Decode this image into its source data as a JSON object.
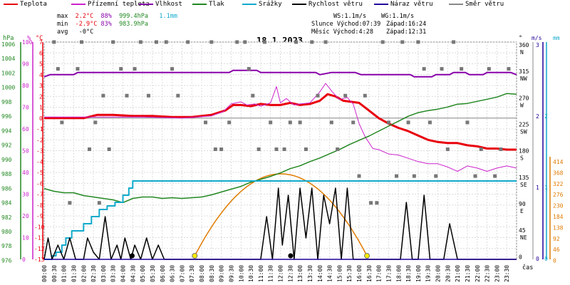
{
  "legend": [
    {
      "label": "Teplota",
      "color": "#e8000b"
    },
    {
      "label": "Přízemní teplota",
      "color": "#cc22cc"
    },
    {
      "label": "Vlhkost",
      "color": "#8800aa"
    },
    {
      "label": "Tlak",
      "color": "#228822"
    },
    {
      "label": "Srážky",
      "color": "#11aacc"
    },
    {
      "label": "Rychlost větru",
      "color": "#000000"
    },
    {
      "label": "Náraz větru",
      "color": "#220099"
    },
    {
      "label": "Směr větru",
      "color": "#888888"
    }
  ],
  "stats": {
    "max_label": "max",
    "min_label": "min",
    "avg_label": "avg",
    "max_temp": "2.2°C",
    "max_hum": "88%",
    "max_press": "999.4hPa",
    "max_rain": "1.1mm",
    "min_temp": "-2.9°C",
    "min_hum": "83%",
    "min_press": "983.9hPa",
    "avg_temp": "-0°C"
  },
  "sun": {
    "ws": "WS:1.1m/s",
    "wg": "WG:1.1m/s",
    "sun_line": "Slunce Východ:07:39",
    "sun_set": "Západ:16:24",
    "moon_line": "Měsíc Východ:4:28",
    "moon_set": "Západ:12:31"
  },
  "title": "18.1.2023",
  "axes": {
    "hpa_unit": "hPa",
    "pct_unit": "%",
    "c_unit": "°C",
    "deg_unit": "°",
    "ms_unit": "m/s",
    "mm_unit": "mm",
    "time_unit": "čas",
    "hpa_ticks": [
      "1006",
      "1004",
      "1002",
      "1000",
      "998",
      "996",
      "994",
      "992",
      "990",
      "988",
      "986",
      "984",
      "982",
      "980",
      "978",
      "976"
    ],
    "pct_ticks": [
      "100",
      "90",
      "80",
      "70",
      "60",
      "50",
      "40",
      "30",
      "20",
      "10",
      "0"
    ],
    "c_ticks": [
      "7",
      "6",
      "5",
      "4",
      "3",
      "2",
      "1",
      "0",
      "-1",
      "-2",
      "-3",
      "-4",
      "-5",
      "-6",
      "-7",
      "-8",
      "-9",
      "-10",
      "-11",
      "-12",
      "-13"
    ],
    "dir_ticks": [
      [
        "360",
        "N"
      ],
      [
        "315",
        "NW"
      ],
      [
        "270",
        "W"
      ],
      [
        "225",
        "SW"
      ],
      [
        "180",
        "S"
      ],
      [
        "135",
        "SE"
      ],
      [
        "90",
        "E"
      ],
      [
        "45",
        "NE"
      ],
      [
        "0",
        ""
      ]
    ],
    "ms_ticks": [
      "3",
      "2",
      "1",
      "0"
    ],
    "mm_ticks": [
      "",
      "2",
      "1",
      "0"
    ],
    "gust_ticks": [
      "414",
      "368",
      "322",
      "276",
      "230",
      "184",
      "138",
      "92",
      "46",
      "0"
    ],
    "time_ticks": [
      "00:00",
      "00:30",
      "01:00",
      "01:30",
      "02:00",
      "02:30",
      "03:00",
      "03:30",
      "04:00",
      "04:30",
      "05:00",
      "05:30",
      "06:00",
      "06:30",
      "07:00",
      "07:30",
      "08:00",
      "08:30",
      "09:00",
      "09:30",
      "10:00",
      "10:30",
      "11:00",
      "11:30",
      "12:00",
      "12:30",
      "13:00",
      "13:30",
      "14:00",
      "14:30",
      "15:00",
      "15:30",
      "16:00",
      "16:30",
      "17:00",
      "17:30",
      "18:00",
      "18:30",
      "19:00",
      "19:30",
      "20:00",
      "20:30",
      "21:00",
      "21:30",
      "22:00",
      "22:30",
      "23:00",
      "23:30"
    ]
  },
  "chart_data": {
    "type": "line",
    "title": "18.1.2023",
    "x_unit": "hours",
    "x_range": [
      0,
      24
    ],
    "series": [
      {
        "name": "Teplota",
        "axis": "°C",
        "color": "#e8000b",
        "x": [
          0,
          1,
          2,
          2.7,
          3.5,
          4.5,
          5.5,
          6.5,
          7.5,
          8.5,
          9.2,
          9.6,
          10,
          10.5,
          11,
          11.5,
          12,
          12.5,
          13,
          13.5,
          14,
          14.4,
          14.8,
          15.2,
          15.6,
          16,
          16.5,
          17,
          17.5,
          18,
          18.5,
          19,
          19.5,
          20,
          20.5,
          21,
          21.5,
          22,
          22.5,
          23,
          23.5,
          24
        ],
        "y": [
          0,
          0,
          0,
          0.3,
          0.3,
          0.2,
          0.2,
          0.1,
          0.1,
          0.3,
          0.7,
          1.2,
          1.2,
          1.1,
          1.3,
          1.2,
          1.2,
          1.4,
          1.2,
          1.3,
          1.6,
          2.2,
          2.0,
          1.6,
          1.5,
          1.4,
          0.7,
          0,
          -0.5,
          -0.9,
          -1.2,
          -1.6,
          -2.0,
          -2.2,
          -2.3,
          -2.3,
          -2.5,
          -2.6,
          -2.8,
          -2.8,
          -2.9,
          -2.9
        ]
      },
      {
        "name": "Přízemní teplota",
        "axis": "°C",
        "color": "#cc22cc",
        "x": [
          0,
          3,
          5,
          7,
          8.5,
          9.1,
          9.5,
          10,
          10.3,
          10.7,
          11,
          11.5,
          11.8,
          12,
          12.3,
          12.7,
          13,
          13.5,
          14,
          14.3,
          14.6,
          15,
          15.4,
          15.7,
          16,
          16.3,
          16.7,
          17,
          17.5,
          18,
          18.5,
          19,
          19.5,
          20,
          20.5,
          21,
          21.5,
          22,
          22.5,
          23,
          23.5,
          24
        ],
        "y": [
          0.1,
          0.1,
          0.1,
          0,
          0.2,
          0.6,
          1.3,
          1.5,
          1.2,
          1.3,
          1.1,
          1.4,
          2.9,
          1.4,
          1.8,
          1.2,
          1.3,
          1.4,
          2.4,
          3.2,
          2.5,
          1.7,
          1.9,
          1.3,
          -0.5,
          -1.7,
          -2.8,
          -2.9,
          -3.3,
          -3.4,
          -3.7,
          -4.0,
          -4.2,
          -4.2,
          -4.5,
          -4.9,
          -4.4,
          -4.6,
          -4.9,
          -4.6,
          -4.4,
          -4.6
        ]
      },
      {
        "name": "Vlhkost",
        "axis": "%",
        "color": "#8800aa",
        "x": [
          0,
          0.3,
          1.5,
          1.7,
          9.4,
          9.6,
          10.8,
          11,
          13.8,
          14,
          14.6,
          15.8,
          16.1,
          18.6,
          18.8,
          19.7,
          19.9,
          20.6,
          20.8,
          21.4,
          21.6,
          22.3,
          22.5,
          23.7,
          24
        ],
        "y": [
          84,
          85,
          85,
          86,
          86,
          87,
          87,
          86,
          86,
          85,
          86,
          86,
          85,
          85,
          84,
          84,
          85,
          85,
          86,
          86,
          85,
          85,
          86,
          86,
          85
        ]
      },
      {
        "name": "Tlak",
        "axis": "hPa",
        "color": "#228822",
        "x": [
          0,
          0.5,
          1,
          1.5,
          2,
          2.5,
          3,
          3.5,
          4,
          4.5,
          5,
          5.5,
          6,
          6.5,
          7,
          7.5,
          8,
          8.5,
          9,
          9.5,
          10,
          10.5,
          11,
          11.5,
          12,
          12.5,
          13,
          13.5,
          14,
          14.5,
          15,
          15.5,
          16,
          16.5,
          17,
          17.5,
          18,
          18.5,
          19,
          19.5,
          20,
          20.5,
          21,
          21.5,
          22,
          22.5,
          23,
          23.5,
          24
        ],
        "y": [
          986.0,
          985.6,
          985.4,
          985.4,
          985.0,
          984.8,
          984.6,
          984.4,
          984.0,
          984.6,
          984.8,
          984.8,
          984.6,
          984.7,
          984.6,
          984.7,
          984.8,
          985.1,
          985.5,
          985.9,
          986.3,
          986.9,
          987.3,
          987.7,
          988.2,
          988.8,
          989.2,
          989.8,
          990.3,
          990.9,
          991.5,
          992.2,
          992.8,
          993.4,
          994.1,
          994.8,
          995.5,
          996.2,
          996.7,
          997.0,
          997.2,
          997.5,
          997.9,
          998.0,
          998.3,
          998.6,
          998.9,
          999.4,
          999.3
        ]
      },
      {
        "name": "Srážky",
        "axis": "mm",
        "color": "#11aacc",
        "x": [
          0,
          0.4,
          0.6,
          0.9,
          1.1,
          1.4,
          1.7,
          2.0,
          2.4,
          2.8,
          3.2,
          3.6,
          4.0,
          4.3,
          4.5,
          24
        ],
        "y": [
          0,
          0.05,
          0.1,
          0.2,
          0.3,
          0.4,
          0.4,
          0.5,
          0.6,
          0.7,
          0.75,
          0.8,
          0.9,
          1.0,
          1.1,
          1.1
        ]
      },
      {
        "name": "Rychlost větru",
        "axis": "m/s",
        "color": "#000000",
        "x": [
          0,
          0.2,
          0.4,
          0.7,
          1.0,
          1.3,
          1.6,
          2.0,
          2.2,
          2.5,
          2.8,
          3.1,
          3.4,
          3.7,
          3.9,
          4.1,
          4.4,
          4.6,
          4.9,
          5.2,
          5.5,
          5.8,
          6.1,
          6.4,
          6.8,
          7.0,
          7.3,
          7.6,
          8.0,
          8.3,
          8.6,
          9.0,
          9.3,
          9.6,
          10.0,
          10.3,
          10.6,
          11.0,
          11.3,
          11.6,
          11.9,
          12.1,
          12.4,
          12.7,
          13.0,
          13.3,
          13.6,
          13.9,
          14.2,
          14.5,
          14.8,
          15.1,
          15.4,
          15.7,
          16.0,
          16.3,
          16.6,
          16.9,
          17.2,
          17.5,
          17.8,
          18.1,
          18.4,
          18.7,
          19.0,
          19.3,
          19.6,
          20.0,
          20.3,
          20.6,
          21.0,
          21.3,
          21.6,
          22.0,
          22.3,
          22.6,
          23.0,
          23.3,
          23.6,
          24
        ],
        "y": [
          0,
          0.3,
          0,
          0.2,
          0,
          0.3,
          0,
          0,
          0.3,
          0.1,
          0,
          0.6,
          0,
          0.2,
          0,
          0.3,
          0,
          0.2,
          0,
          0.3,
          0,
          0.2,
          0,
          0,
          0,
          0,
          0,
          0,
          0,
          0,
          0,
          0,
          0,
          0,
          0,
          0,
          0,
          0,
          0.6,
          0,
          1.0,
          0.2,
          0.9,
          0,
          1.0,
          0.3,
          1.0,
          0,
          0.9,
          0.5,
          1.0,
          0,
          1.0,
          0,
          0,
          0,
          0,
          0,
          0,
          0,
          0,
          0,
          0.8,
          0,
          0,
          0.9,
          0,
          0,
          0,
          0.5,
          0,
          0,
          0,
          0,
          0,
          0,
          0,
          0,
          0,
          0
        ]
      },
      {
        "name": "Náraz větru",
        "axis": "m/s",
        "color": "#220099",
        "x": [
          0,
          24
        ],
        "y": [
          0,
          0
        ]
      },
      {
        "name": "Směr větru",
        "axis": "°",
        "color": "#888888",
        "x": [
          0.5,
          0.7,
          0.9,
          1.3,
          1.7,
          1.9,
          2.3,
          2.6,
          2.8,
          3.0,
          3.3,
          3.5,
          3.9,
          4.2,
          4.6,
          4.9,
          5.3,
          5.7,
          6.2,
          6.5,
          6.8,
          7.3,
          8.2,
          8.5,
          8.7,
          9.0,
          9.4,
          9.8,
          10.2,
          10.4,
          10.6,
          10.9,
          11.2,
          11.5,
          11.8,
          12.2,
          12.5,
          12.8,
          13.0,
          13.3,
          13.6,
          13.9,
          14.3,
          14.6,
          14.9,
          15.3,
          15.7,
          16.0,
          16.3,
          16.6,
          16.9,
          17.2,
          17.5,
          17.9,
          18.2,
          18.5,
          18.8,
          19.0,
          19.3,
          19.6,
          19.9,
          20.2,
          20.5,
          20.8,
          21.2,
          21.5,
          21.9,
          22.2,
          22.6,
          22.9,
          23.2,
          23.6
        ],
        "y": [
          360,
          315,
          225,
          90,
          315,
          360,
          180,
          225,
          90,
          270,
          180,
          360,
          315,
          270,
          315,
          360,
          270,
          360,
          360,
          315,
          270,
          360,
          225,
          360,
          180,
          180,
          225,
          360,
          360,
          315,
          270,
          180,
          360,
          225,
          180,
          180,
          225,
          360,
          225,
          180,
          360,
          270,
          360,
          225,
          180,
          270,
          225,
          135,
          270,
          90,
          90,
          360,
          225,
          135,
          360,
          225,
          135,
          360,
          315,
          225,
          135,
          315,
          180,
          360,
          315,
          225,
          135,
          180,
          315,
          135,
          180,
          315
        ]
      }
    ],
    "sun_arc": {
      "rise": 7.65,
      "set": 16.4
    },
    "moon_arc": {
      "rise": 4.47,
      "set": 12.52
    }
  }
}
